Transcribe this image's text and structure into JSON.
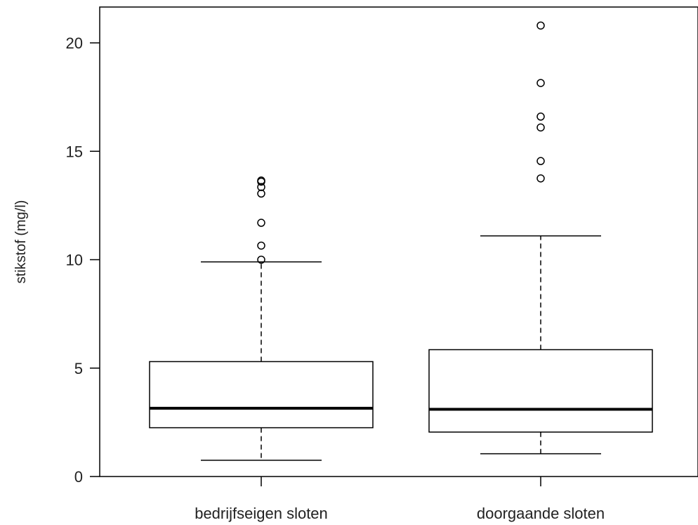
{
  "chart_data": {
    "type": "boxplot",
    "title": "",
    "xlabel": "",
    "ylabel": "stikstof (mg/l)",
    "ylim": [
      0,
      21
    ],
    "yticks": [
      0,
      5,
      10,
      15,
      20
    ],
    "grid": false,
    "colors": {
      "box_fill": "#ffffff",
      "stroke": "#000000"
    },
    "categories": [
      "bedrijfseigen sloten",
      "doorgaande sloten"
    ],
    "boxes": [
      {
        "category": "bedrijfseigen sloten",
        "whisker_low": 0.75,
        "q1": 2.25,
        "median": 3.15,
        "q3": 5.3,
        "whisker_high": 9.9,
        "outliers": [
          10.0,
          10.65,
          11.7,
          13.05,
          13.35,
          13.6,
          13.65
        ]
      },
      {
        "category": "doorgaande sloten",
        "whisker_low": 1.05,
        "q1": 2.05,
        "median": 3.1,
        "q3": 5.85,
        "whisker_high": 11.1,
        "outliers": [
          13.75,
          14.55,
          16.1,
          16.6,
          18.15,
          20.8
        ]
      }
    ]
  }
}
